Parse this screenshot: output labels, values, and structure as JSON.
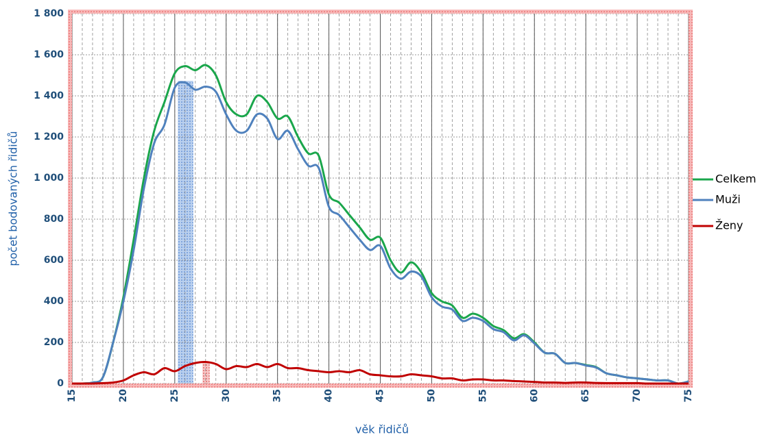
{
  "chart_data": {
    "type": "line",
    "xlabel": "věk řidičů",
    "ylabel": "počet bodovaných řidičů",
    "x": [
      15,
      16,
      17,
      18,
      19,
      20,
      21,
      22,
      23,
      24,
      25,
      26,
      27,
      28,
      29,
      30,
      31,
      32,
      33,
      34,
      35,
      36,
      37,
      38,
      39,
      40,
      41,
      42,
      43,
      44,
      45,
      46,
      47,
      48,
      49,
      50,
      51,
      52,
      53,
      54,
      55,
      56,
      57,
      58,
      59,
      60,
      61,
      62,
      63,
      64,
      65,
      66,
      67,
      68,
      69,
      70,
      71,
      72,
      73,
      74,
      75
    ],
    "series": [
      {
        "name": "Celkem",
        "color": "#1aa64b",
        "values": [
          0,
          0,
          5,
          30,
          200,
          420,
          700,
          1000,
          1230,
          1370,
          1510,
          1545,
          1525,
          1550,
          1500,
          1370,
          1310,
          1310,
          1400,
          1370,
          1290,
          1300,
          1200,
          1120,
          1110,
          920,
          880,
          820,
          760,
          700,
          710,
          600,
          540,
          590,
          540,
          440,
          400,
          380,
          320,
          340,
          320,
          280,
          260,
          220,
          240,
          200,
          150,
          145,
          100,
          100,
          90,
          80,
          50,
          40,
          30,
          25,
          20,
          15,
          15,
          0,
          10
        ]
      },
      {
        "name": "Muži",
        "color": "#4f81bd",
        "values": [
          0,
          0,
          5,
          30,
          200,
          400,
          650,
          950,
          1170,
          1260,
          1440,
          1465,
          1430,
          1445,
          1420,
          1310,
          1230,
          1230,
          1310,
          1290,
          1190,
          1230,
          1140,
          1060,
          1050,
          860,
          820,
          760,
          700,
          650,
          670,
          560,
          510,
          545,
          520,
          420,
          375,
          360,
          305,
          320,
          305,
          265,
          250,
          210,
          235,
          195,
          150,
          145,
          100,
          100,
          88,
          78,
          50,
          40,
          30,
          25,
          20,
          15,
          15,
          0,
          10
        ]
      },
      {
        "name": "Ženy",
        "color": "#c00000",
        "values": [
          0,
          0,
          0,
          2,
          5,
          15,
          40,
          55,
          45,
          75,
          60,
          85,
          100,
          105,
          95,
          70,
          85,
          80,
          95,
          80,
          95,
          75,
          75,
          65,
          60,
          55,
          60,
          55,
          65,
          45,
          40,
          35,
          35,
          45,
          40,
          35,
          25,
          25,
          15,
          20,
          20,
          15,
          15,
          12,
          10,
          8,
          5,
          5,
          3,
          5,
          5,
          3,
          2,
          2,
          2,
          2,
          0,
          0,
          0,
          0,
          0
        ]
      }
    ],
    "xlim": [
      15,
      75
    ],
    "xticks": [
      15,
      20,
      25,
      30,
      35,
      40,
      45,
      50,
      55,
      60,
      65,
      70,
      75
    ],
    "ylim": [
      0,
      1800
    ],
    "yticks": [
      0,
      200,
      400,
      600,
      800,
      {
        "value": 1000,
        "label": "1 000"
      },
      {
        "value": 1200,
        "label": "1 200"
      },
      {
        "value": 1400,
        "label": "1 400"
      },
      {
        "value": 1600,
        "label": "1 600"
      },
      {
        "value": 1800,
        "label": "1 800"
      }
    ],
    "grid": true
  }
}
